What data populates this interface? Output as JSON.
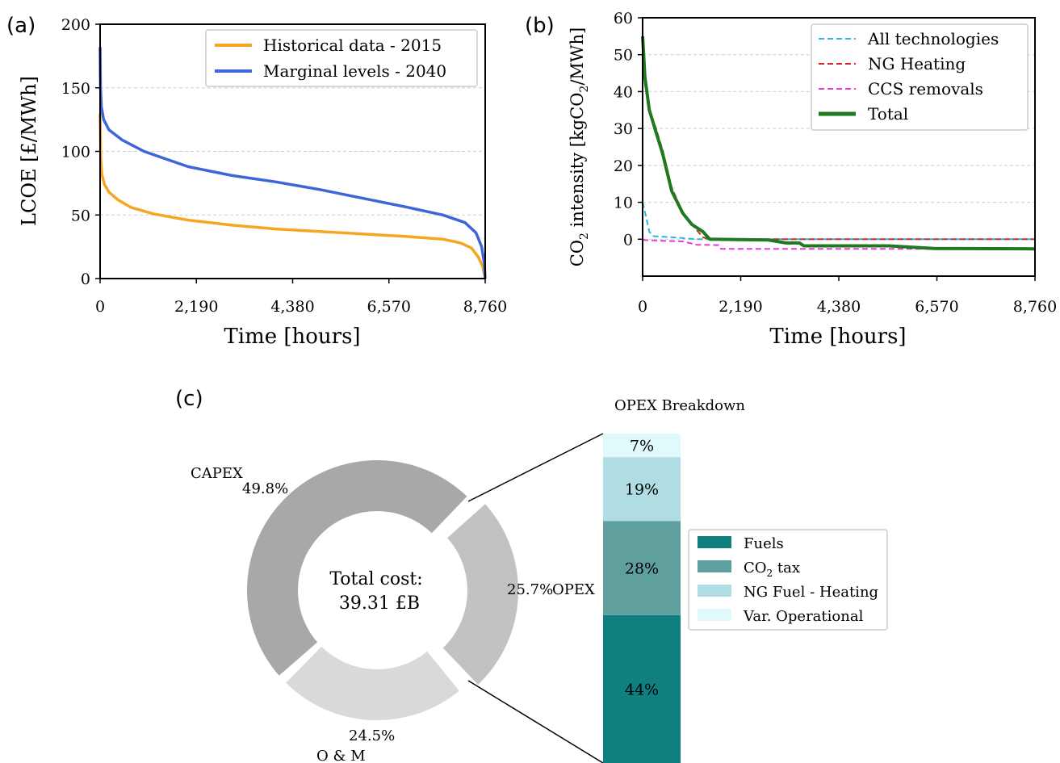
{
  "chart_data": [
    {
      "panel": "a",
      "type": "line",
      "panel_label": "(a)",
      "xlabel": "Time [hours]",
      "ylabel": "LCOE [£/MWh]",
      "xlim": [
        0,
        8760
      ],
      "ylim": [
        0,
        200
      ],
      "xticks": [
        0,
        2190,
        4380,
        6570,
        8760
      ],
      "xtick_labels": [
        "0",
        "2,190",
        "4,380",
        "6,570",
        "8,760"
      ],
      "yticks": [
        0,
        50,
        100,
        150,
        200
      ],
      "ytick_labels": [
        "0",
        "50",
        "100",
        "150",
        "200"
      ],
      "grid": "horizontal dashed",
      "legend_position": "top-right",
      "series": [
        {
          "name": "Historical data - 2015",
          "color": "#f5a623",
          "style": "solid",
          "points": [
            [
              0,
              130
            ],
            [
              15,
              95
            ],
            [
              40,
              82
            ],
            [
              100,
              74
            ],
            [
              200,
              68
            ],
            [
              400,
              62
            ],
            [
              700,
              56
            ],
            [
              1200,
              51
            ],
            [
              2000,
              46
            ],
            [
              3000,
              42
            ],
            [
              4000,
              39
            ],
            [
              5000,
              37
            ],
            [
              6000,
              35
            ],
            [
              7000,
              33
            ],
            [
              7800,
              31
            ],
            [
              8200,
              28
            ],
            [
              8450,
              24
            ],
            [
              8600,
              17
            ],
            [
              8700,
              10
            ],
            [
              8760,
              0
            ]
          ]
        },
        {
          "name": "Marginal levels - 2040",
          "color": "#3d66d9",
          "style": "solid",
          "points": [
            [
              0,
              182
            ],
            [
              10,
              150
            ],
            [
              30,
              135
            ],
            [
              80,
              125
            ],
            [
              200,
              117
            ],
            [
              500,
              109
            ],
            [
              1000,
              100
            ],
            [
              1500,
              94
            ],
            [
              2000,
              88
            ],
            [
              3000,
              81
            ],
            [
              4000,
              76
            ],
            [
              5000,
              70
            ],
            [
              6000,
              63
            ],
            [
              7000,
              56
            ],
            [
              7800,
              50
            ],
            [
              8300,
              44
            ],
            [
              8550,
              36
            ],
            [
              8680,
              25
            ],
            [
              8740,
              12
            ],
            [
              8760,
              0
            ]
          ]
        }
      ]
    },
    {
      "panel": "b",
      "type": "line",
      "panel_label": "(b)",
      "xlabel": "Time [hours]",
      "ylabel_main": "CO",
      "ylabel_sub": "2",
      "ylabel_rest": " intensity [kgCO",
      "ylabel_sub2": "2",
      "ylabel_end": "/MWh]",
      "xlim": [
        0,
        8760
      ],
      "ylim": [
        -10,
        60
      ],
      "xticks": [
        0,
        2190,
        4380,
        6570,
        8760
      ],
      "xtick_labels": [
        "0",
        "2,190",
        "4,380",
        "6,570",
        "8,760"
      ],
      "yticks": [
        0,
        10,
        20,
        30,
        40,
        50,
        60
      ],
      "ytick_labels": [
        "0",
        "10",
        "20",
        "30",
        "40",
        "50",
        "60"
      ],
      "grid": "horizontal dashed",
      "legend_position": "top-right",
      "series": [
        {
          "name": "All technologies",
          "color": "#29b6e0",
          "style": "dashed",
          "points": [
            [
              0,
              10
            ],
            [
              80,
              6
            ],
            [
              150,
              2
            ],
            [
              250,
              0.8
            ],
            [
              700,
              0.5
            ],
            [
              1200,
              0
            ],
            [
              8760,
              0
            ]
          ]
        },
        {
          "name": "NG Heating",
          "color": "#d62728",
          "style": "dashed",
          "points": [
            [
              0,
              50
            ],
            [
              50,
              42
            ],
            [
              150,
              35
            ],
            [
              300,
              30
            ],
            [
              450,
              24
            ],
            [
              650,
              14
            ],
            [
              900,
              7
            ],
            [
              1100,
              4
            ],
            [
              1350,
              0.5
            ],
            [
              1500,
              0
            ],
            [
              8760,
              0
            ]
          ]
        },
        {
          "name": "CCS removals",
          "color": "#e83ad6",
          "style": "dashed",
          "points": [
            [
              0,
              -0.2
            ],
            [
              400,
              -0.4
            ],
            [
              900,
              -0.6
            ],
            [
              1200,
              -1.5
            ],
            [
              1700,
              -1.6
            ],
            [
              1750,
              -2.6
            ],
            [
              8760,
              -2.6
            ]
          ]
        },
        {
          "name": "Total",
          "color": "#1f7a1f",
          "style": "solid",
          "points": [
            [
              0,
              55
            ],
            [
              50,
              44
            ],
            [
              150,
              35
            ],
            [
              300,
              29
            ],
            [
              450,
              23
            ],
            [
              650,
              13
            ],
            [
              900,
              7
            ],
            [
              1100,
              4
            ],
            [
              1350,
              2
            ],
            [
              1500,
              0
            ],
            [
              2800,
              -0.2
            ],
            [
              3200,
              -1
            ],
            [
              3500,
              -1
            ],
            [
              3600,
              -1.8
            ],
            [
              5500,
              -1.8
            ],
            [
              6500,
              -2.5
            ],
            [
              8760,
              -2.6
            ]
          ]
        }
      ]
    },
    {
      "panel": "c",
      "type": "pie",
      "panel_label": "(c)",
      "center_label_1": "Total cost:",
      "center_label_2": "39.31 £B",
      "slices": [
        {
          "name": "CAPEX",
          "value": 49.8,
          "value_label": "49.8%",
          "color": "#a8a8a8"
        },
        {
          "name": "O & M",
          "value": 24.5,
          "value_label": "24.5%",
          "color": "#d9d9d9"
        },
        {
          "name": "OPEX",
          "value": 25.7,
          "value_label": "25.7%",
          "color": "#c2c2c2",
          "exploded": true
        }
      ]
    },
    {
      "panel": "c-breakdown",
      "type": "bar",
      "title": "OPEX Breakdown",
      "stacked": true,
      "segments": [
        {
          "name": "Fuels",
          "value": 44,
          "value_label": "44%",
          "color": "#0f7f7f"
        },
        {
          "name": "CO2 tax",
          "label_main": "CO",
          "label_sub": "2",
          "label_rest": " tax",
          "value": 28,
          "value_label": "28%",
          "color": "#5fa09f"
        },
        {
          "name": "NG Fuel - Heating",
          "value": 19,
          "value_label": "19%",
          "color": "#b0dde3"
        },
        {
          "name": "Var. Operational",
          "value": 7,
          "value_label": "7%",
          "color": "#e0fafb"
        }
      ],
      "legend_position": "right"
    }
  ]
}
